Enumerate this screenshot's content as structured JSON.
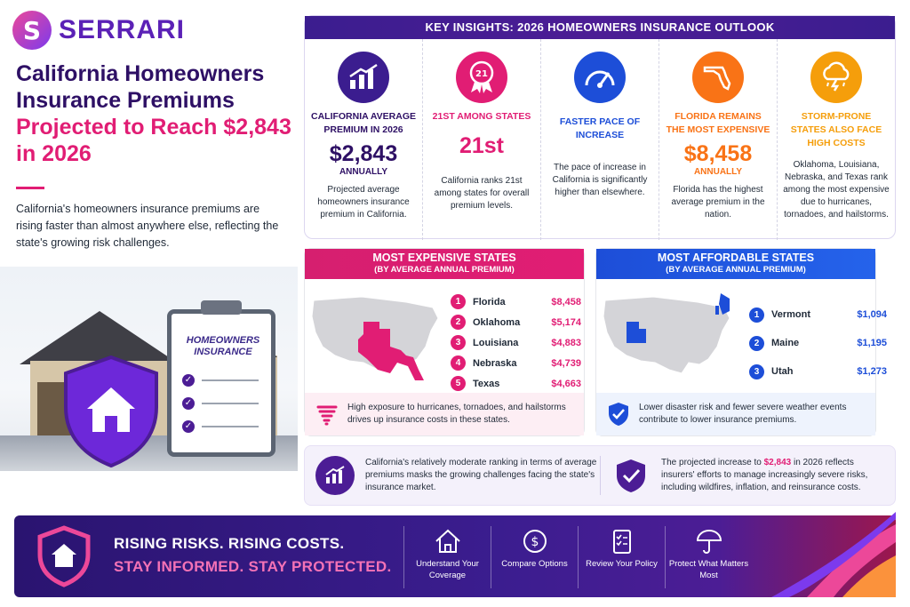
{
  "brand": {
    "name": "SERRARI"
  },
  "headline": {
    "line1": "California Homeowners Insurance Premiums",
    "line2": "Projected to Reach $2,843 in 2026"
  },
  "intro": "California's homeowners insurance premiums are rising faster than almost anywhere else, reflecting the state's growing risk challenges.",
  "illustration": {
    "clipboard_title": "HOMEOWNERS INSURANCE"
  },
  "insights": {
    "title": "KEY INSIGHTS: 2026 HOMEOWNERS INSURANCE OUTLOOK",
    "cards": [
      {
        "label": "CALIFORNIA AVERAGE PREMIUM IN 2026",
        "value": "$2,843",
        "sub": "ANNUALLY",
        "desc": "Projected average homeowners insurance premium in California.",
        "icon": "chart-growth-icon",
        "color": "#3b1d8f"
      },
      {
        "label": "21ST AMONG STATES",
        "value": "21st",
        "sub": "",
        "desc": "California ranks 21st among states for overall premium levels.",
        "icon": "award-badge-icon",
        "color": "#e11d74"
      },
      {
        "label": "FASTER PACE OF INCREASE",
        "value": "",
        "sub": "",
        "desc": "The pace of increase in California is significantly higher than elsewhere.",
        "icon": "gauge-icon",
        "color": "#1d4ed8"
      },
      {
        "label": "FLORIDA REMAINS THE MOST EXPENSIVE",
        "value": "$8,458",
        "sub": "ANNUALLY",
        "desc": "Florida has the highest average premium in the nation.",
        "icon": "florida-map-icon",
        "color": "#f97316"
      },
      {
        "label": "STORM-PRONE STATES ALSO FACE HIGH COSTS",
        "value": "",
        "sub": "",
        "desc": "Oklahoma, Louisiana, Nebraska, and Texas rank among the most expensive due to hurricanes, tornadoes, and hailstorms.",
        "icon": "storm-cloud-icon",
        "color": "#f59e0b"
      }
    ]
  },
  "expensive": {
    "title": "MOST EXPENSIVE STATES",
    "subtitle": "(BY AVERAGE ANNUAL PREMIUM)",
    "rows": [
      {
        "rank": "1",
        "state": "Florida",
        "value": "$8,458"
      },
      {
        "rank": "2",
        "state": "Oklahoma",
        "value": "$5,174"
      },
      {
        "rank": "3",
        "state": "Louisiana",
        "value": "$4,883"
      },
      {
        "rank": "4",
        "state": "Nebraska",
        "value": "$4,739"
      },
      {
        "rank": "5",
        "state": "Texas",
        "value": "$4,663"
      }
    ],
    "footer": "High exposure to hurricanes, tornadoes, and hailstorms drives up insurance costs in these states.",
    "accent": "#e11d74"
  },
  "affordable": {
    "title": "MOST AFFORDABLE STATES",
    "subtitle": "(BY AVERAGE ANNUAL PREMIUM)",
    "rows": [
      {
        "rank": "1",
        "state": "Vermont",
        "value": "$1,094"
      },
      {
        "rank": "2",
        "state": "Maine",
        "value": "$1,195"
      },
      {
        "rank": "3",
        "state": "Utah",
        "value": "$1,273"
      }
    ],
    "footer": "Lower disaster risk and fewer severe weather events contribute to lower insurance premiums.",
    "accent": "#1d4ed8"
  },
  "notes": {
    "left": "California's relatively moderate ranking in terms of average premiums masks the growing challenges facing the state's insurance market.",
    "right_pre": "The projected increase to ",
    "right_highlight": "$2,843",
    "right_post": " in 2026 reflects insurers' efforts to manage increasingly severe risks, including wildfires, inflation, and reinsurance costs."
  },
  "banner": {
    "line1": "RISING RISKS. RISING COSTS.",
    "line2": "STAY INFORMED. STAY PROTECTED.",
    "items": [
      {
        "label": "Understand Your Coverage",
        "icon": "house-outline-icon"
      },
      {
        "label": "Compare Options",
        "icon": "dollar-coin-icon"
      },
      {
        "label": "Review Your Policy",
        "icon": "checklist-icon"
      },
      {
        "label": "Protect What Matters Most",
        "icon": "umbrella-icon"
      }
    ]
  }
}
